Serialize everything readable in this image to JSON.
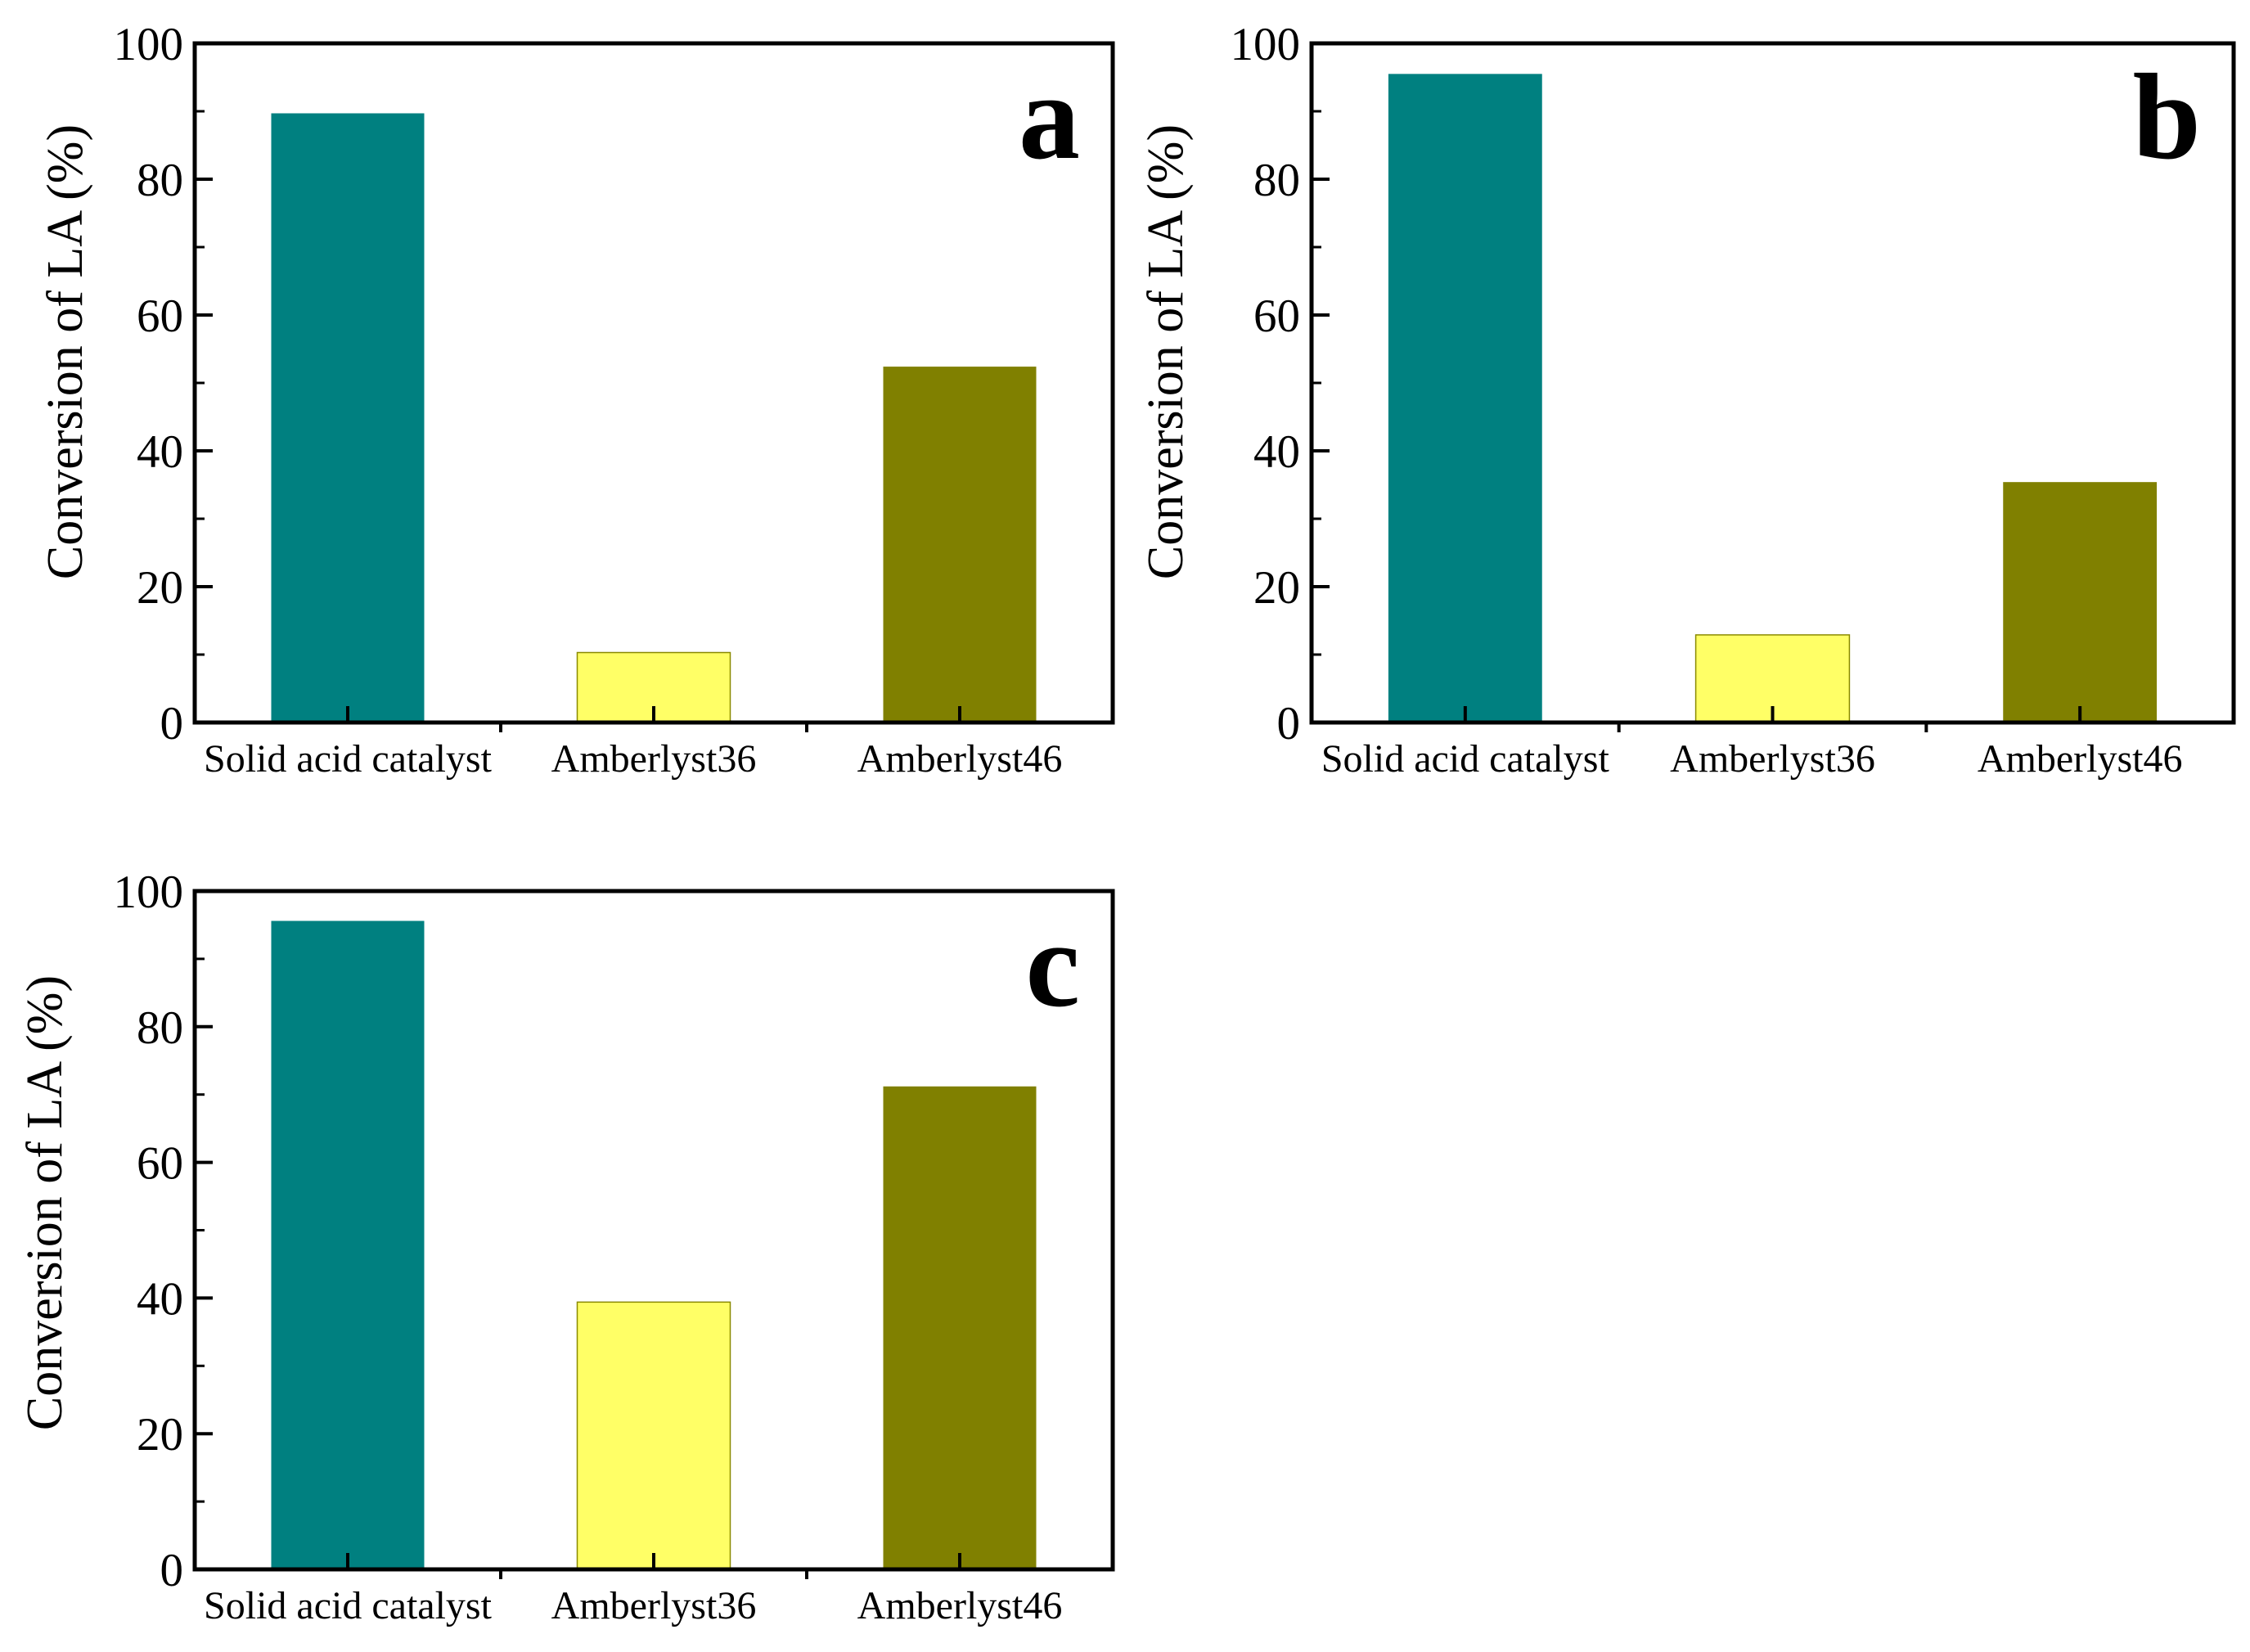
{
  "figure": {
    "description_colors": {
      "teal": "#008080",
      "yellow": "#FFFF66",
      "olive": "#808000",
      "axis": "#000000"
    }
  },
  "chart_data": [
    {
      "type": "bar",
      "panel": "a",
      "categories": [
        "Solid acid catalyst",
        "Amberlyst36",
        "Amberlyst46"
      ],
      "values": [
        89.7,
        10.3,
        52.4
      ],
      "colors": [
        "#008080",
        "#FFFF66",
        "#808000"
      ],
      "ylabel": "Conversion of LA (%)",
      "xlabel": "",
      "ylim": [
        0,
        100
      ],
      "yticks": [
        0,
        20,
        40,
        60,
        80,
        100
      ],
      "grid": false,
      "legend": "none"
    },
    {
      "type": "bar",
      "panel": "b",
      "categories": [
        "Solid acid catalyst",
        "Amberlyst36",
        "Amberlyst46"
      ],
      "values": [
        95.5,
        12.9,
        35.4
      ],
      "colors": [
        "#008080",
        "#FFFF66",
        "#808000"
      ],
      "ylabel": "Conversion of  LA (%)",
      "xlabel": "",
      "ylim": [
        0,
        100
      ],
      "yticks": [
        0,
        20,
        40,
        60,
        80,
        100
      ],
      "grid": false,
      "legend": "none"
    },
    {
      "type": "bar",
      "panel": "c",
      "categories": [
        "Solid acid catalyst",
        "Amberlyst36",
        "Amberlyst46"
      ],
      "values": [
        95.6,
        39.4,
        71.2
      ],
      "colors": [
        "#008080",
        "#FFFF66",
        "#808000"
      ],
      "ylabel": "Conversion of  LA (%)",
      "xlabel": "",
      "ylim": [
        0,
        100
      ],
      "yticks": [
        0,
        20,
        40,
        60,
        80,
        100
      ],
      "grid": false,
      "legend": "none"
    }
  ]
}
